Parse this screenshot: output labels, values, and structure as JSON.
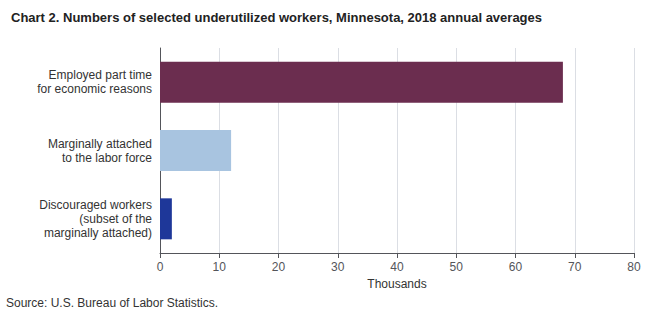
{
  "chart_data": {
    "type": "bar",
    "orientation": "horizontal",
    "title": "Chart 2. Numbers of selected underutilized workers, Minnesota, 2018 annual averages",
    "source": "Source: U.S. Bureau of Labor Statistics.",
    "categories": [
      "Discouraged workers\n(subset of the\nmarginally attached)",
      "Marginally attached\nto the labor force",
      "Employed part time\nfor economic reasons"
    ],
    "values": [
      2,
      12,
      68
    ],
    "colors": [
      "#1e3799",
      "#a8c4e0",
      "#6b2d4f"
    ],
    "xlabel": "Thousands",
    "xlim": [
      0,
      80
    ],
    "xticks": [
      0,
      10,
      20,
      30,
      40,
      50,
      60,
      70,
      80
    ],
    "grid": true
  }
}
